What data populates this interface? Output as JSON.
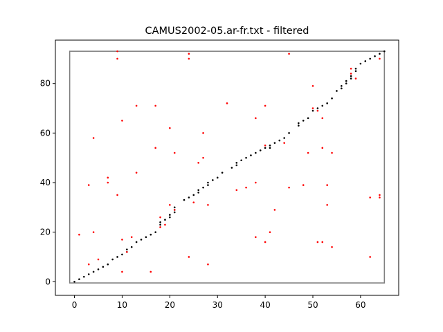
{
  "chart_data": {
    "type": "scatter",
    "title": "CAMUS2002-05.ar-fr.txt - filtered",
    "xlabel": "",
    "ylabel": "",
    "xlim": [
      -4,
      68
    ],
    "ylim": [
      -5.5,
      97.5
    ],
    "grid": false,
    "x_ticks": [
      0,
      10,
      20,
      30,
      40,
      50,
      60
    ],
    "y_ticks": [
      0,
      20,
      40,
      60,
      80
    ],
    "bounding_box": {
      "x": [
        -1,
        65
      ],
      "y": [
        -0.5,
        93
      ],
      "color": "#808080"
    },
    "series": [
      {
        "color": "#000000",
        "points": [
          [
            0,
            0
          ],
          [
            1,
            1
          ],
          [
            2,
            2
          ],
          [
            3,
            3
          ],
          [
            4,
            4
          ],
          [
            5,
            5
          ],
          [
            6,
            6
          ],
          [
            7,
            7
          ],
          [
            8,
            9
          ],
          [
            9,
            10
          ],
          [
            10,
            11
          ],
          [
            11,
            12
          ],
          [
            11,
            13
          ],
          [
            12,
            14
          ],
          [
            13,
            16
          ],
          [
            14,
            17
          ],
          [
            15,
            18
          ],
          [
            16,
            19
          ],
          [
            17,
            20
          ],
          [
            18,
            23
          ],
          [
            18,
            24
          ],
          [
            19,
            25
          ],
          [
            20,
            26
          ],
          [
            20,
            27
          ],
          [
            21,
            28
          ],
          [
            21,
            29
          ],
          [
            21,
            30
          ],
          [
            23,
            33
          ],
          [
            24,
            34
          ],
          [
            25,
            35
          ],
          [
            26,
            36
          ],
          [
            26,
            37
          ],
          [
            27,
            38
          ],
          [
            28,
            39
          ],
          [
            28,
            40
          ],
          [
            29,
            41
          ],
          [
            30,
            42
          ],
          [
            31,
            44
          ],
          [
            33,
            46
          ],
          [
            34,
            47
          ],
          [
            34,
            48
          ],
          [
            35,
            49
          ],
          [
            36,
            50
          ],
          [
            37,
            51
          ],
          [
            38,
            52
          ],
          [
            39,
            53
          ],
          [
            40,
            54
          ],
          [
            41,
            54
          ],
          [
            41,
            55
          ],
          [
            42,
            56
          ],
          [
            43,
            57
          ],
          [
            44,
            58
          ],
          [
            45,
            60
          ],
          [
            47,
            63
          ],
          [
            47,
            64
          ],
          [
            48,
            65
          ],
          [
            49,
            66
          ],
          [
            50,
            69
          ],
          [
            51,
            70
          ],
          [
            52,
            71
          ],
          [
            53,
            72
          ],
          [
            54,
            74
          ],
          [
            55,
            77
          ],
          [
            56,
            78
          ],
          [
            56,
            79
          ],
          [
            57,
            80
          ],
          [
            57,
            81
          ],
          [
            58,
            82
          ],
          [
            58,
            83
          ],
          [
            59,
            85
          ],
          [
            59,
            86
          ],
          [
            60,
            88
          ],
          [
            61,
            89
          ],
          [
            62,
            90
          ],
          [
            63,
            91
          ],
          [
            64,
            92
          ],
          [
            65,
            93
          ]
        ]
      },
      {
        "color": "#ff0000",
        "points": [
          [
            1,
            19
          ],
          [
            3,
            7
          ],
          [
            3,
            39
          ],
          [
            4,
            20
          ],
          [
            4,
            58
          ],
          [
            5,
            9
          ],
          [
            7,
            40
          ],
          [
            7,
            42
          ],
          [
            9,
            35
          ],
          [
            9,
            90
          ],
          [
            9,
            93
          ],
          [
            10,
            4
          ],
          [
            10,
            17
          ],
          [
            10,
            65
          ],
          [
            11,
            12
          ],
          [
            12,
            18
          ],
          [
            13,
            44
          ],
          [
            13,
            71
          ],
          [
            16,
            4
          ],
          [
            17,
            54
          ],
          [
            17,
            71
          ],
          [
            18,
            22
          ],
          [
            18,
            26
          ],
          [
            19,
            23
          ],
          [
            20,
            31
          ],
          [
            20,
            62
          ],
          [
            21,
            29
          ],
          [
            21,
            52
          ],
          [
            24,
            10
          ],
          [
            24,
            90
          ],
          [
            24,
            92
          ],
          [
            25,
            32
          ],
          [
            26,
            48
          ],
          [
            27,
            50
          ],
          [
            27,
            60
          ],
          [
            28,
            7
          ],
          [
            28,
            31
          ],
          [
            32,
            72
          ],
          [
            34,
            37
          ],
          [
            36,
            38
          ],
          [
            38,
            18
          ],
          [
            38,
            40
          ],
          [
            38,
            66
          ],
          [
            40,
            16
          ],
          [
            40,
            55
          ],
          [
            40,
            71
          ],
          [
            41,
            20
          ],
          [
            42,
            29
          ],
          [
            44,
            56
          ],
          [
            45,
            38
          ],
          [
            45,
            92
          ],
          [
            48,
            39
          ],
          [
            49,
            52
          ],
          [
            50,
            70
          ],
          [
            50,
            79
          ],
          [
            51,
            16
          ],
          [
            51,
            69
          ],
          [
            52,
            16
          ],
          [
            52,
            54
          ],
          [
            52,
            66
          ],
          [
            53,
            31
          ],
          [
            53,
            39
          ],
          [
            54,
            14
          ],
          [
            54,
            52
          ],
          [
            58,
            84
          ],
          [
            58,
            86
          ],
          [
            59,
            82
          ],
          [
            62,
            10
          ],
          [
            62,
            34
          ],
          [
            64,
            34
          ],
          [
            64,
            35
          ],
          [
            64,
            90
          ]
        ]
      }
    ]
  }
}
